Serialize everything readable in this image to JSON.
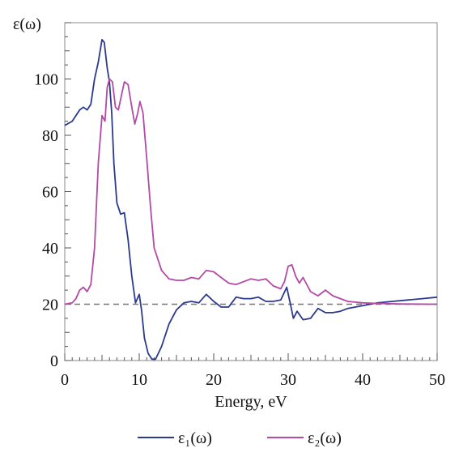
{
  "chart_data": {
    "type": "line",
    "ylabel": "ε(ω)",
    "xlabel": "Energy, eV",
    "xlim": [
      0,
      50
    ],
    "ylim": [
      0,
      120
    ],
    "x_ticks": [
      "0",
      "10",
      "20",
      "30",
      "40",
      "50"
    ],
    "y_ticks": [
      "0",
      "20",
      "40",
      "60",
      "80",
      "100"
    ],
    "reference_line": {
      "y": 20,
      "style": "dashed",
      "color": "#777777"
    },
    "legend_position": "bottom-center",
    "grid": false,
    "series": [
      {
        "name": "ε₁(ω)",
        "color": "#2b3a8f",
        "points": [
          [
            0,
            83.5
          ],
          [
            1,
            85
          ],
          [
            2,
            89
          ],
          [
            2.5,
            90
          ],
          [
            3,
            89
          ],
          [
            3.5,
            91
          ],
          [
            4,
            100
          ],
          [
            4.5,
            106
          ],
          [
            5,
            114
          ],
          [
            5.3,
            113
          ],
          [
            5.7,
            104
          ],
          [
            6,
            99
          ],
          [
            6.3,
            88
          ],
          [
            6.6,
            70
          ],
          [
            7,
            56
          ],
          [
            7.5,
            52
          ],
          [
            8,
            52.5
          ],
          [
            8.5,
            43
          ],
          [
            9,
            30
          ],
          [
            9.5,
            20.5
          ],
          [
            10,
            23.5
          ],
          [
            10.3,
            18
          ],
          [
            10.7,
            8
          ],
          [
            11.2,
            2.5
          ],
          [
            11.7,
            0.5
          ],
          [
            12.2,
            0.5
          ],
          [
            13,
            5
          ],
          [
            14,
            13
          ],
          [
            15,
            18
          ],
          [
            16,
            20.5
          ],
          [
            17,
            21
          ],
          [
            18,
            20.5
          ],
          [
            19,
            23.5
          ],
          [
            20,
            21
          ],
          [
            21,
            19
          ],
          [
            22,
            19
          ],
          [
            23,
            22.5
          ],
          [
            24,
            22
          ],
          [
            25,
            22
          ],
          [
            26,
            22.5
          ],
          [
            27,
            21
          ],
          [
            28,
            21
          ],
          [
            29,
            21.5
          ],
          [
            29.8,
            26
          ],
          [
            30.3,
            20
          ],
          [
            30.7,
            15
          ],
          [
            31.2,
            17.5
          ],
          [
            32,
            14.5
          ],
          [
            33,
            15
          ],
          [
            34,
            18.5
          ],
          [
            35,
            17
          ],
          [
            36,
            17
          ],
          [
            37,
            17.5
          ],
          [
            38,
            18.5
          ],
          [
            40,
            19.5
          ],
          [
            42,
            20.5
          ],
          [
            44,
            21
          ],
          [
            46,
            21.5
          ],
          [
            48,
            22
          ],
          [
            50,
            22.5
          ]
        ]
      },
      {
        "name": "ε₂(ω)",
        "color": "#b24aa6",
        "points": [
          [
            0,
            20
          ],
          [
            1,
            20.5
          ],
          [
            1.5,
            22
          ],
          [
            2,
            25
          ],
          [
            2.5,
            26
          ],
          [
            3,
            24.5
          ],
          [
            3.5,
            27
          ],
          [
            4,
            40
          ],
          [
            4.5,
            70
          ],
          [
            5,
            87
          ],
          [
            5.4,
            85
          ],
          [
            5.7,
            97
          ],
          [
            6,
            100
          ],
          [
            6.4,
            99
          ],
          [
            6.8,
            90
          ],
          [
            7.2,
            89
          ],
          [
            7.6,
            94
          ],
          [
            8,
            99
          ],
          [
            8.5,
            98
          ],
          [
            9,
            90
          ],
          [
            9.4,
            84
          ],
          [
            9.8,
            88
          ],
          [
            10.1,
            92
          ],
          [
            10.5,
            88
          ],
          [
            11,
            72
          ],
          [
            11.5,
            55
          ],
          [
            12,
            40
          ],
          [
            13,
            32
          ],
          [
            14,
            29
          ],
          [
            15,
            28.5
          ],
          [
            16,
            28.5
          ],
          [
            17,
            29.5
          ],
          [
            18,
            29
          ],
          [
            19,
            32
          ],
          [
            20,
            31.5
          ],
          [
            21,
            29.5
          ],
          [
            22,
            27.5
          ],
          [
            23,
            27
          ],
          [
            24,
            28
          ],
          [
            25,
            29
          ],
          [
            26,
            28.5
          ],
          [
            27,
            29
          ],
          [
            28,
            26.5
          ],
          [
            29,
            25.5
          ],
          [
            29.5,
            28
          ],
          [
            30,
            33.5
          ],
          [
            30.5,
            34
          ],
          [
            31,
            30
          ],
          [
            31.5,
            27.5
          ],
          [
            32,
            29.5
          ],
          [
            33,
            24.5
          ],
          [
            34,
            23
          ],
          [
            35,
            25
          ],
          [
            36,
            23
          ],
          [
            37,
            22
          ],
          [
            38,
            21
          ],
          [
            40,
            20.5
          ],
          [
            42,
            20.3
          ],
          [
            45,
            20.1
          ],
          [
            50,
            20
          ]
        ]
      }
    ]
  }
}
